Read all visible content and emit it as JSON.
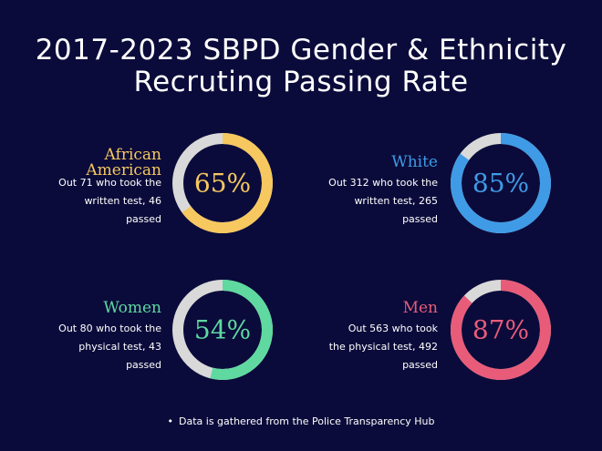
{
  "title": {
    "line1": "2017-2023 SBPD Gender & Ethnicity",
    "line2": "Recruting Passing Rate"
  },
  "chart_data": {
    "type": "pie",
    "title": "2017-2023 SBPD Gender & Ethnicity Recruting Passing Rate",
    "series": [
      {
        "name": "African American",
        "percent": 65,
        "percent_label": "65%",
        "description": [
          "Out 71 who took the",
          "written test, 46",
          "passed"
        ],
        "color": "#f7c85f"
      },
      {
        "name": "White",
        "percent": 85,
        "percent_label": "85%",
        "description": [
          "Out 312 who took the",
          "written test, 265",
          "passed"
        ],
        "color": "#3f9be6"
      },
      {
        "name": "Women",
        "percent": 54,
        "percent_label": "54%",
        "description": [
          "Out 80 who took the",
          "physical test, 43",
          "passed"
        ],
        "color": "#5fd9a0"
      },
      {
        "name": "Men",
        "percent": 87,
        "percent_label": "87%",
        "description": [
          "Out 563 who took",
          "the physical test, 492",
          "passed"
        ],
        "color": "#e85c79"
      }
    ],
    "track_color": "#d9d9d9"
  },
  "footer": {
    "bullet": "•",
    "text": "Data is gathered from the Police Transparency Hub"
  }
}
